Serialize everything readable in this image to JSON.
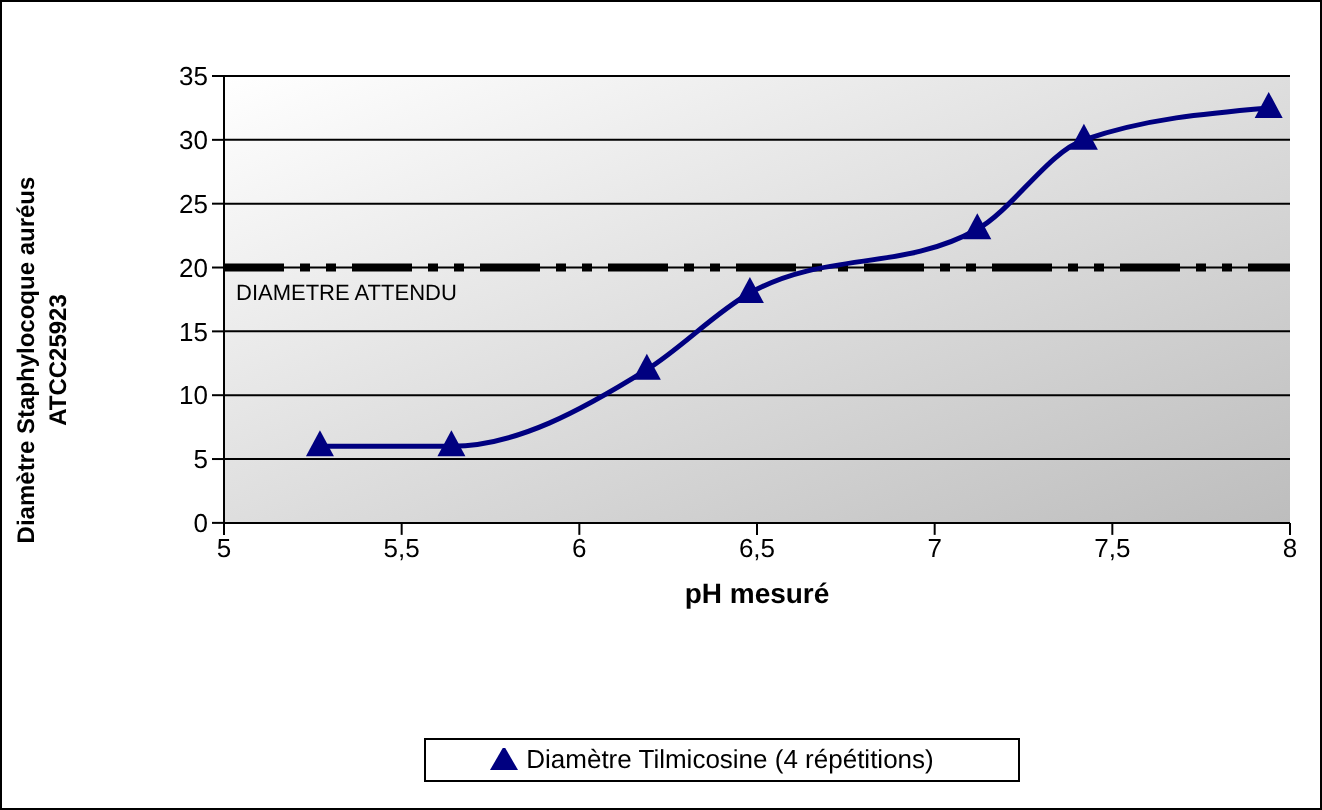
{
  "chart_data": {
    "type": "line",
    "xlabel": "pH mesuré",
    "ylabel": "Diamètre Staphylocoque auréus ATCC25923",
    "x": [
      5.27,
      5.64,
      6.19,
      6.48,
      7.12,
      7.42,
      7.94
    ],
    "series": [
      {
        "name": "Diamètre Tilmicosine (4 répétitions)",
        "color": "#000080",
        "values": [
          6,
          6,
          12,
          18,
          23,
          30,
          32.5
        ]
      }
    ],
    "xlim": [
      5,
      8
    ],
    "xticks": [
      {
        "value": 5,
        "label": "5"
      },
      {
        "value": 5.5,
        "label": "5,5"
      },
      {
        "value": 6,
        "label": "6"
      },
      {
        "value": 6.5,
        "label": "6,5"
      },
      {
        "value": 7,
        "label": "7"
      },
      {
        "value": 7.5,
        "label": "7,5"
      },
      {
        "value": 8,
        "label": "8"
      }
    ],
    "ylim": [
      0,
      35
    ],
    "yticks": [
      0,
      5,
      10,
      15,
      20,
      25,
      30,
      35
    ],
    "ref_lines": [
      {
        "axis": "y",
        "value": 20,
        "label": "DIAMETRE ATTENDU",
        "color": "#000000",
        "line_style": "dashdot"
      }
    ],
    "grid": "y",
    "legend": "bottom",
    "marker": "triangle",
    "line_style": "solid"
  }
}
